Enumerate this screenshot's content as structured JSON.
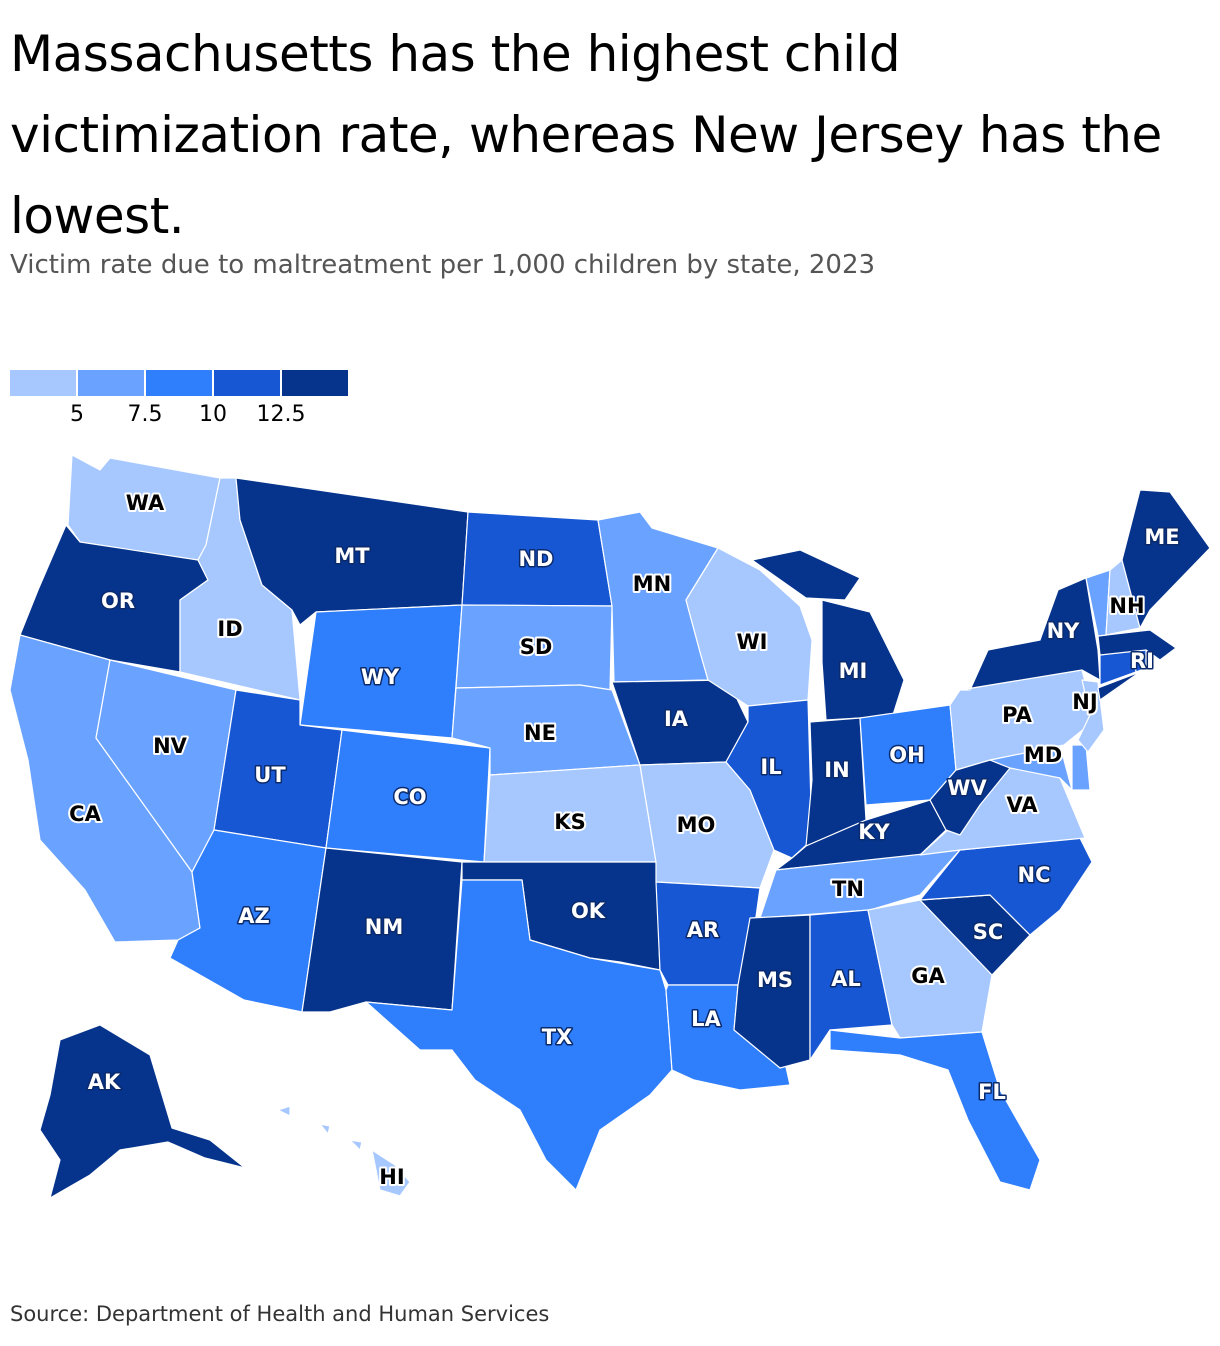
{
  "title": "Massachusetts has the highest child victimization rate, whereas New Jersey has the lowest.",
  "subtitle": "Victim rate due to maltreatment per 1,000 children by state, 2023",
  "source": "Source: Department of Health and Human Services",
  "legend": {
    "colors": [
      "#a6c8ff",
      "#6aa2ff",
      "#2f7efc",
      "#1757d3",
      "#06348c"
    ],
    "ticks": [
      "5",
      "7.5",
      "10",
      "12.5"
    ]
  },
  "states": [
    {
      "code": "WA",
      "bin": 0
    },
    {
      "code": "OR",
      "bin": 4
    },
    {
      "code": "CA",
      "bin": 1
    },
    {
      "code": "ID",
      "bin": 0
    },
    {
      "code": "NV",
      "bin": 1
    },
    {
      "code": "MT",
      "bin": 4
    },
    {
      "code": "WY",
      "bin": 2
    },
    {
      "code": "UT",
      "bin": 3
    },
    {
      "code": "AZ",
      "bin": 2
    },
    {
      "code": "CO",
      "bin": 2
    },
    {
      "code": "NM",
      "bin": 4
    },
    {
      "code": "ND",
      "bin": 3
    },
    {
      "code": "SD",
      "bin": 1
    },
    {
      "code": "NE",
      "bin": 1
    },
    {
      "code": "KS",
      "bin": 0
    },
    {
      "code": "OK",
      "bin": 4
    },
    {
      "code": "TX",
      "bin": 2
    },
    {
      "code": "MN",
      "bin": 1
    },
    {
      "code": "IA",
      "bin": 4
    },
    {
      "code": "MO",
      "bin": 0
    },
    {
      "code": "AR",
      "bin": 3
    },
    {
      "code": "LA",
      "bin": 2
    },
    {
      "code": "WI",
      "bin": 0
    },
    {
      "code": "IL",
      "bin": 3
    },
    {
      "code": "MI",
      "bin": 4
    },
    {
      "code": "IN",
      "bin": 4
    },
    {
      "code": "OH",
      "bin": 2
    },
    {
      "code": "KY",
      "bin": 4
    },
    {
      "code": "TN",
      "bin": 1
    },
    {
      "code": "MS",
      "bin": 4
    },
    {
      "code": "AL",
      "bin": 3
    },
    {
      "code": "GA",
      "bin": 0
    },
    {
      "code": "FL",
      "bin": 2
    },
    {
      "code": "SC",
      "bin": 4
    },
    {
      "code": "NC",
      "bin": 3
    },
    {
      "code": "VA",
      "bin": 0
    },
    {
      "code": "WV",
      "bin": 4
    },
    {
      "code": "MD",
      "bin": 1
    },
    {
      "code": "DE",
      "bin": 1
    },
    {
      "code": "PA",
      "bin": 0
    },
    {
      "code": "NJ",
      "bin": 0
    },
    {
      "code": "NY",
      "bin": 4
    },
    {
      "code": "CT",
      "bin": 3
    },
    {
      "code": "RI",
      "bin": 3
    },
    {
      "code": "MA",
      "bin": 4
    },
    {
      "code": "VT",
      "bin": 1
    },
    {
      "code": "NH",
      "bin": 0
    },
    {
      "code": "ME",
      "bin": 4
    },
    {
      "code": "AK",
      "bin": 4
    },
    {
      "code": "HI",
      "bin": 0
    }
  ]
}
